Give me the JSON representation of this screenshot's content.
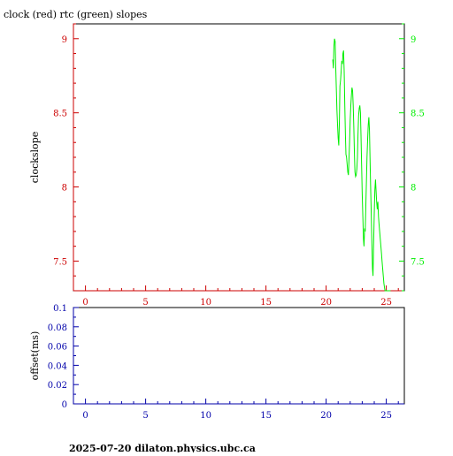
{
  "title": "clock (red) rtc (green) slopes",
  "footer": "2025-07-20  dilaton.physics.ubc.ca",
  "colors": {
    "frame": "#000000",
    "red_axis": "#cc0000",
    "green_axis": "#00ee00",
    "blue_axis": "#0000aa",
    "rtc_line": "#00ee00"
  },
  "chart_data": [
    {
      "type": "line",
      "title": "clock (red) rtc (green) slopes",
      "ylabel": "clockslope",
      "xlim": [
        -1,
        26.5
      ],
      "ylim": [
        7.3,
        9.1
      ],
      "x_ticks": [
        0,
        5,
        10,
        15,
        20,
        25
      ],
      "y_ticks": [
        7.5,
        8,
        8.5,
        9
      ],
      "y_tick_labels": [
        "7.5",
        "8",
        "8.5",
        "9"
      ],
      "right_y_tick_labels": [
        "7.5",
        "8",
        "8.5",
        "9"
      ],
      "grid": false,
      "series": [
        {
          "color": "#00ee00",
          "x": [
            20.55,
            20.6,
            20.65,
            20.7,
            20.75,
            20.8,
            20.85,
            20.9,
            20.95,
            21.0,
            21.05,
            21.1,
            21.15,
            21.2,
            21.25,
            21.3,
            21.35,
            21.4,
            21.45,
            21.5,
            21.55,
            21.6,
            21.65,
            21.7,
            21.75,
            21.8,
            21.85,
            21.9,
            21.95,
            22.0,
            22.05,
            22.1,
            22.15,
            22.2,
            22.25,
            22.3,
            22.35,
            22.4,
            22.45,
            22.5,
            22.55,
            22.6,
            22.65,
            22.7,
            22.75,
            22.8,
            22.85,
            22.9,
            22.95,
            23.0,
            23.05,
            23.1,
            23.15,
            23.2,
            23.25,
            23.3,
            23.35,
            23.4,
            23.45,
            23.5,
            23.55,
            23.6,
            23.65,
            23.7,
            23.75,
            23.8,
            23.85,
            23.9,
            23.95,
            24.0,
            24.05,
            24.1,
            24.15,
            24.2,
            24.25,
            24.3,
            24.35,
            24.4,
            24.45,
            24.5,
            24.55,
            24.6,
            24.65,
            24.7,
            24.75,
            24.8,
            24.85,
            24.9,
            24.95,
            25.0,
            25.05,
            25.1,
            25.15,
            25.2,
            25.25,
            25.3,
            25.35
          ],
          "y": [
            8.86,
            8.8,
            8.95,
            9.0,
            8.98,
            8.8,
            8.65,
            8.52,
            8.42,
            8.33,
            8.28,
            8.45,
            8.68,
            8.72,
            8.78,
            8.85,
            8.83,
            8.9,
            8.92,
            8.78,
            8.55,
            8.35,
            8.22,
            8.2,
            8.15,
            8.1,
            8.08,
            8.18,
            8.3,
            8.45,
            8.55,
            8.62,
            8.67,
            8.65,
            8.55,
            8.4,
            8.22,
            8.1,
            8.07,
            8.08,
            8.12,
            8.2,
            8.35,
            8.48,
            8.53,
            8.55,
            8.5,
            8.35,
            8.15,
            7.95,
            7.8,
            7.65,
            7.6,
            7.72,
            7.7,
            7.88,
            8.05,
            8.2,
            8.32,
            8.42,
            8.47,
            8.38,
            8.2,
            8.0,
            7.82,
            7.62,
            7.45,
            7.4,
            7.62,
            7.82,
            7.98,
            8.05,
            7.98,
            7.9,
            7.85,
            7.9,
            7.8,
            7.75,
            7.7,
            7.65,
            7.6,
            7.55,
            7.5,
            7.45,
            7.4,
            7.35,
            7.32,
            7.3,
            7.3,
            7.3,
            7.3,
            7.3,
            7.3,
            7.3,
            7.3,
            7.3,
            7.3
          ]
        }
      ]
    },
    {
      "type": "line",
      "ylabel": "offset(ms)",
      "xlim": [
        -1,
        26.5
      ],
      "ylim": [
        0,
        0.1
      ],
      "x_ticks": [
        0,
        5,
        10,
        15,
        20,
        25
      ],
      "y_ticks": [
        0,
        0.02,
        0.04,
        0.06,
        0.08,
        0.1
      ],
      "y_tick_labels": [
        "0",
        "0.02",
        "0.04",
        "0.06",
        "0.08",
        "0.1"
      ],
      "grid": false,
      "series": []
    }
  ]
}
